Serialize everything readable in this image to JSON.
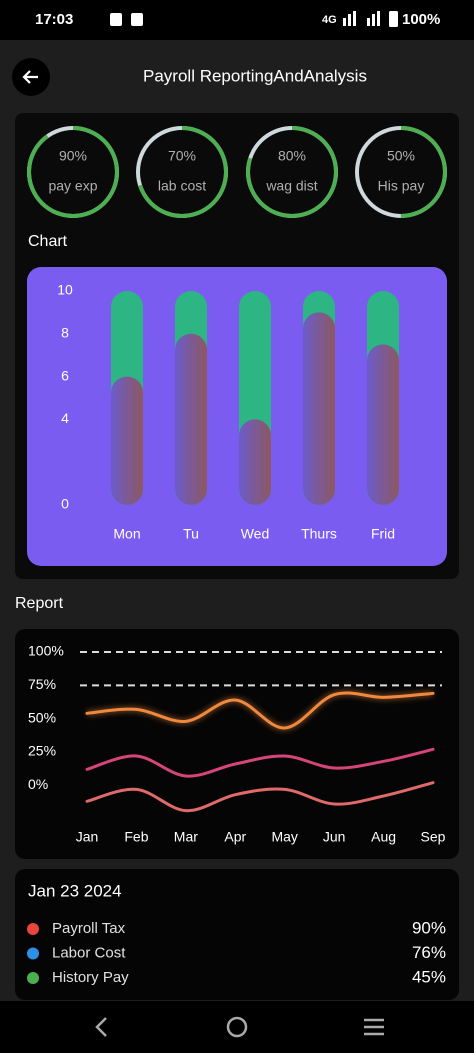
{
  "status_bar": {
    "time": "17:03",
    "network": "4G",
    "battery": "100%"
  },
  "header": {
    "title": "Payroll ReportingAndAnalysis"
  },
  "gauges": [
    {
      "value": 90,
      "label": "90%",
      "name": "pay exp"
    },
    {
      "value": 70,
      "label": "70%",
      "name": "lab cost"
    },
    {
      "value": 80,
      "label": "80%",
      "name": "wag dist"
    },
    {
      "value": 50,
      "label": "50%",
      "name": "His pay"
    }
  ],
  "chart_section": {
    "title": "Chart"
  },
  "chart_data": [
    {
      "type": "bar",
      "categories": [
        "Mon",
        "Tu",
        "Wed",
        "Thurs",
        "Frid"
      ],
      "values": [
        6,
        8,
        4,
        9,
        7.5
      ],
      "ylim": [
        0,
        10
      ],
      "yticks": [
        0,
        4,
        6,
        8,
        10
      ],
      "color": "#7a5a9a",
      "track_color": "#2db584"
    },
    {
      "type": "line",
      "categories": [
        "Jan",
        "Feb",
        "Mar",
        "Apr",
        "May",
        "Jun",
        "Aug",
        "Sep"
      ],
      "ylim": [
        -20,
        100
      ],
      "yticks": [
        {
          "value": 0,
          "label": "0%"
        },
        {
          "value": 25,
          "label": "25%"
        },
        {
          "value": 50,
          "label": "50%"
        },
        {
          "value": 75,
          "label": "75%"
        },
        {
          "value": 100,
          "label": "100%"
        }
      ],
      "series": [
        {
          "color": "#f0883e",
          "values": [
            54,
            57,
            48,
            64,
            43,
            68,
            66,
            69
          ]
        },
        {
          "color": "#d6457a",
          "values": [
            12,
            22,
            7,
            16,
            22,
            13,
            18,
            27
          ]
        },
        {
          "color": "#e06a6a",
          "values": [
            -12,
            -3,
            -19,
            -7,
            -3,
            -14,
            -8,
            2
          ]
        }
      ]
    }
  ],
  "report_section": {
    "title": "Report"
  },
  "summary": {
    "date": "Jan 23 2024",
    "items": [
      {
        "name": "Payroll Tax",
        "color": "#e8453c",
        "value": "90%"
      },
      {
        "name": "Labor Cost",
        "color": "#2f8fe6",
        "value": "76%"
      },
      {
        "name": "History Pay",
        "color": "#4caf50",
        "value": "45%"
      }
    ]
  }
}
